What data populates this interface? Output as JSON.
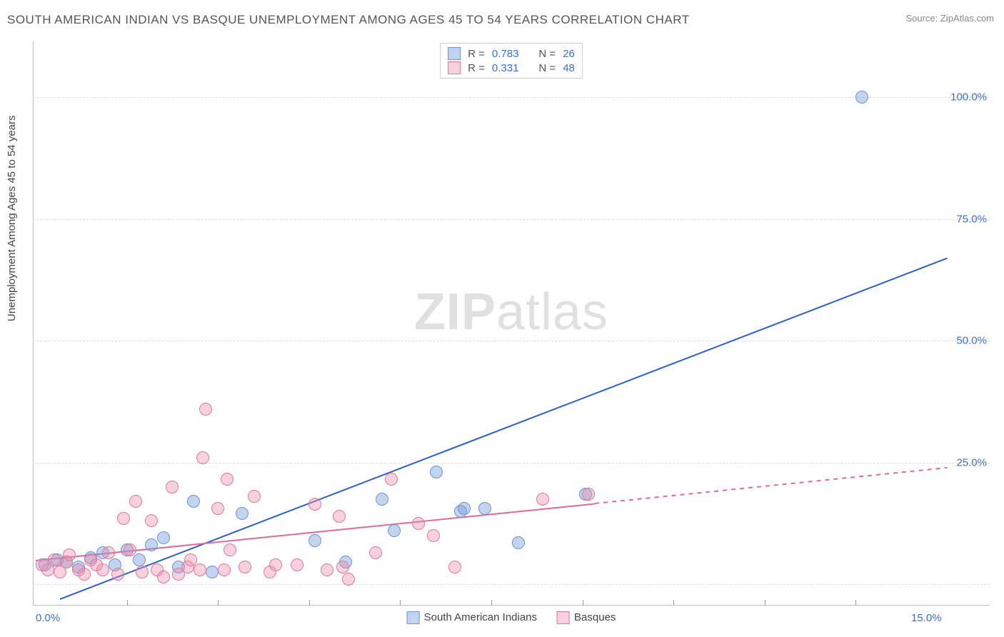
{
  "title": "SOUTH AMERICAN INDIAN VS BASQUE UNEMPLOYMENT AMONG AGES 45 TO 54 YEARS CORRELATION CHART",
  "source": "Source: ZipAtlas.com",
  "ylabel": "Unemployment Among Ages 45 to 54 years",
  "watermark_bold": "ZIP",
  "watermark_light": "atlas",
  "chart": {
    "type": "scatter",
    "background_color": "#ffffff",
    "grid_color": "#dddddd",
    "grid_dash": "4,4",
    "xlim": [
      0,
      15
    ],
    "ylim": [
      0,
      110
    ],
    "xtick_labels": [
      {
        "x": 0,
        "label": "0.0%",
        "color": "#3a6fd8"
      },
      {
        "x": 15,
        "label": "15.0%",
        "color": "#3a6fd8"
      }
    ],
    "xtick_positions": [
      1.5,
      3.0,
      4.5,
      6.0,
      7.5,
      9.0,
      10.5,
      12.0,
      13.5
    ],
    "ytick_labels": [
      {
        "y": 25,
        "label": "25.0%",
        "color": "#3a6fd8"
      },
      {
        "y": 50,
        "label": "50.0%",
        "color": "#3a6fd8"
      },
      {
        "y": 75,
        "label": "75.0%",
        "color": "#3a6fd8"
      },
      {
        "y": 100,
        "label": "100.0%",
        "color": "#3a6fd8"
      }
    ],
    "gridline_y": [
      0,
      25,
      50,
      75,
      100
    ],
    "series": [
      {
        "name": "South American Indians",
        "marker_color_fill": "rgba(120,160,220,0.45)",
        "marker_color_stroke": "#6a94d4",
        "marker_radius": 9,
        "points": [
          [
            0.15,
            4.0
          ],
          [
            0.35,
            5.0
          ],
          [
            0.5,
            4.5
          ],
          [
            0.7,
            3.5
          ],
          [
            0.9,
            5.5
          ],
          [
            1.1,
            6.5
          ],
          [
            1.3,
            4.0
          ],
          [
            1.5,
            7.0
          ],
          [
            1.7,
            5.0
          ],
          [
            1.9,
            8.0
          ],
          [
            2.1,
            9.5
          ],
          [
            2.35,
            3.5
          ],
          [
            2.6,
            17.0
          ],
          [
            2.9,
            2.5
          ],
          [
            3.4,
            14.5
          ],
          [
            4.6,
            9.0
          ],
          [
            5.1,
            4.5
          ],
          [
            5.7,
            17.5
          ],
          [
            5.9,
            11.0
          ],
          [
            6.6,
            23.0
          ],
          [
            7.0,
            15.0
          ],
          [
            7.05,
            15.5
          ],
          [
            7.4,
            15.5
          ],
          [
            7.95,
            8.5
          ],
          [
            9.05,
            18.5
          ],
          [
            13.6,
            100.0
          ]
        ],
        "trend": {
          "color": "#2a5fd0",
          "width": 2.2,
          "x1": 0.4,
          "y1": -3.0,
          "x2": 15.0,
          "y2": 67.0,
          "dash_from_x": null
        }
      },
      {
        "name": "Basques",
        "marker_color_fill": "rgba(235,140,170,0.40)",
        "marker_color_stroke": "#e07898",
        "marker_radius": 9,
        "points": [
          [
            0.1,
            4.0
          ],
          [
            0.2,
            3.0
          ],
          [
            0.3,
            5.0
          ],
          [
            0.4,
            2.5
          ],
          [
            0.5,
            4.5
          ],
          [
            0.55,
            6.0
          ],
          [
            0.7,
            3.0
          ],
          [
            0.8,
            2.0
          ],
          [
            0.9,
            5.0
          ],
          [
            1.0,
            4.0
          ],
          [
            1.1,
            3.0
          ],
          [
            1.2,
            6.5
          ],
          [
            1.35,
            2.0
          ],
          [
            1.45,
            13.5
          ],
          [
            1.55,
            7.0
          ],
          [
            1.65,
            17.0
          ],
          [
            1.75,
            2.5
          ],
          [
            1.9,
            13.0
          ],
          [
            2.0,
            3.0
          ],
          [
            2.1,
            1.5
          ],
          [
            2.25,
            20.0
          ],
          [
            2.35,
            2.0
          ],
          [
            2.5,
            3.5
          ],
          [
            2.55,
            5.0
          ],
          [
            2.7,
            3.0
          ],
          [
            2.75,
            26.0
          ],
          [
            2.8,
            36.0
          ],
          [
            3.0,
            15.5
          ],
          [
            3.1,
            3.0
          ],
          [
            3.15,
            21.5
          ],
          [
            3.2,
            7.0
          ],
          [
            3.45,
            3.5
          ],
          [
            3.6,
            18.0
          ],
          [
            3.85,
            2.5
          ],
          [
            3.95,
            4.0
          ],
          [
            4.3,
            4.0
          ],
          [
            4.6,
            16.5
          ],
          [
            4.8,
            3.0
          ],
          [
            5.0,
            14.0
          ],
          [
            5.05,
            3.5
          ],
          [
            5.15,
            1.0
          ],
          [
            5.6,
            6.5
          ],
          [
            5.85,
            21.5
          ],
          [
            6.3,
            12.5
          ],
          [
            6.55,
            10.0
          ],
          [
            6.9,
            3.5
          ],
          [
            8.35,
            17.5
          ],
          [
            9.1,
            18.5
          ]
        ],
        "trend": {
          "color": "#e36a92",
          "width": 2.0,
          "x1": 0.0,
          "y1": 5.0,
          "x2": 15.0,
          "y2": 24.0,
          "dash_from_x": 9.2
        }
      }
    ],
    "legend_top": {
      "label_color": "#555555",
      "value_color": "#3a6fd8",
      "rows": [
        {
          "swatch_fill": "rgba(120,160,220,0.45)",
          "swatch_stroke": "#6a94d4",
          "r_label": "R =",
          "r_value": "0.783",
          "n_label": "N =",
          "n_value": "26"
        },
        {
          "swatch_fill": "rgba(235,140,170,0.40)",
          "swatch_stroke": "#e07898",
          "r_label": "R =",
          "r_value": "0.331",
          "n_label": "N =",
          "n_value": "48"
        }
      ]
    },
    "legend_bottom": [
      {
        "swatch_fill": "rgba(120,160,220,0.45)",
        "swatch_stroke": "#6a94d4",
        "label": "South American Indians"
      },
      {
        "swatch_fill": "rgba(235,140,170,0.40)",
        "swatch_stroke": "#e07898",
        "label": "Basques"
      }
    ]
  }
}
